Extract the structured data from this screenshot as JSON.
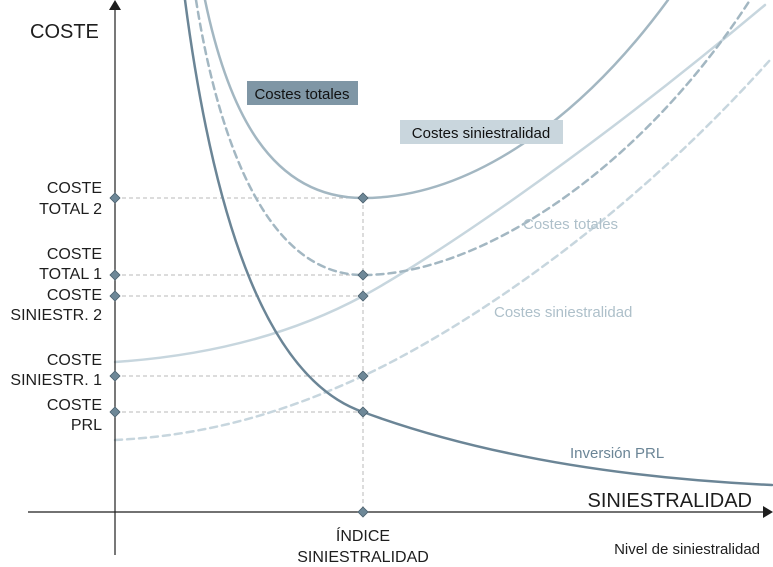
{
  "colors": {
    "axis": "#1e1e1e",
    "guide": "#b8b8b8",
    "dark": "#6b8596",
    "medium": "#a3b7c2",
    "light": "#c7d6de",
    "marker_fill": "#6e8898",
    "marker_stroke": "#4a5f6d",
    "label_box_dark": "#7f96a5",
    "label_box_light": "#c9d6dd",
    "label_text_light": "#aec0ca",
    "label_text_dark": "#6b8596"
  },
  "axes": {
    "y_title": "COSTE",
    "x_title": "SINIESTRALIDAD",
    "x_note": "Nivel de siniestralidad"
  },
  "y_labels": {
    "coste_total_2": [
      "COSTE",
      "TOTAL 2"
    ],
    "coste_total_1": [
      "COSTE",
      "TOTAL 1"
    ],
    "coste_siniestr_2": [
      "COSTE",
      "SINIESTR. 2"
    ],
    "coste_siniestr_1": [
      "COSTE",
      "SINIESTR. 1"
    ],
    "coste_prl": [
      "COSTE",
      "PRL"
    ]
  },
  "x_labels": {
    "indice": [
      "ÍNDICE",
      "SINIESTRALIDAD"
    ]
  },
  "curve_labels": {
    "costes_totales_boxed": "Costes totales",
    "costes_siniestralidad_boxed": "Costes siniestralidad",
    "costes_totales_plain": "Costes totales",
    "costes_siniestralidad_plain": "Costes siniestralidad",
    "inversion_prl": "Inversión PRL"
  },
  "icons": {
    "y_arrow": "arrow-up-icon",
    "x_arrow": "arrow-right-icon",
    "marker": "diamond-marker-icon"
  }
}
